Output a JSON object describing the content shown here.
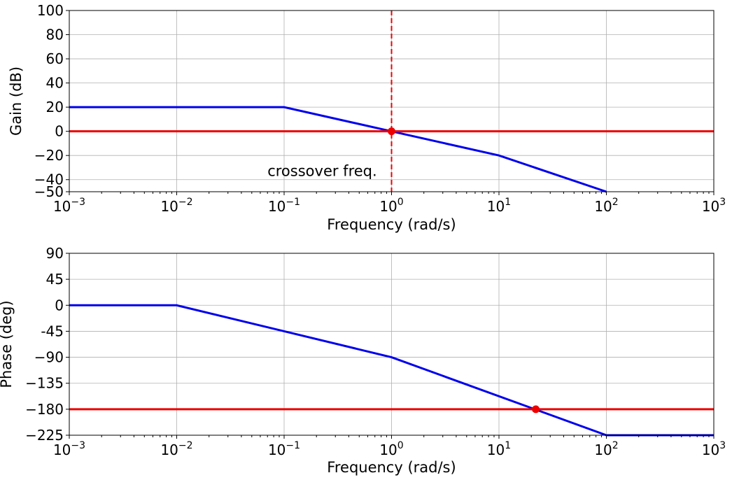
{
  "chart_data": [
    {
      "type": "line",
      "xscale": "log",
      "xlim": [
        0.001,
        1000
      ],
      "ylim": [
        -50,
        100
      ],
      "xlabel": "Frequency (rad/s)",
      "ylabel": "Gain (dB)",
      "grid": true,
      "yticks": [
        -50,
        -40,
        -20,
        0,
        20,
        40,
        60,
        80,
        100
      ],
      "ytick_labels": [
        "−50",
        "−40",
        "−20",
        "0",
        "20",
        "40",
        "60",
        "80",
        "100"
      ],
      "xtick_exponents": [
        "−3",
        "−2",
        "−1",
        "0",
        "1",
        "2",
        "3"
      ],
      "xtick_base": "10",
      "series": [
        {
          "color": "#0000ee",
          "x": [
            0.001,
            0.1,
            1,
            10,
            100
          ],
          "y": [
            20,
            20,
            0,
            -20,
            -50
          ]
        },
        {
          "color": "#ee0000",
          "x": [
            0.001,
            1000
          ],
          "y": [
            0,
            0
          ]
        }
      ],
      "vline": {
        "x": 1,
        "color": "#ee0000",
        "style": "dashed"
      },
      "marker": {
        "x": 1,
        "y": 0,
        "color": "#ee0000"
      },
      "annotation": {
        "text": "crossover freq.",
        "x": 0.07,
        "y": -37
      }
    },
    {
      "type": "line",
      "xscale": "log",
      "xlim": [
        0.001,
        1000
      ],
      "ylim": [
        -225,
        90
      ],
      "xlabel": "Frequency (rad/s)",
      "ylabel": "Phase (deg)",
      "grid": true,
      "yticks": [
        -225,
        -180,
        -135,
        -90,
        -45,
        0,
        45,
        90
      ],
      "ytick_labels": [
        "−225",
        "−180",
        "−135",
        "−90",
        "-45",
        "0",
        "45",
        "90"
      ],
      "xtick_exponents": [
        "−3",
        "−2",
        "−1",
        "0",
        "1",
        "2",
        "3"
      ],
      "xtick_base": "10",
      "series": [
        {
          "color": "#0000ee",
          "x": [
            0.001,
            0.01,
            1,
            100,
            1000
          ],
          "y": [
            0,
            0,
            -90,
            -225,
            -225
          ]
        },
        {
          "color": "#ee0000",
          "x": [
            0.001,
            1000
          ],
          "y": [
            -180,
            -180
          ]
        }
      ],
      "marker": {
        "x": 22,
        "y": -180,
        "color": "#ee0000"
      }
    }
  ]
}
